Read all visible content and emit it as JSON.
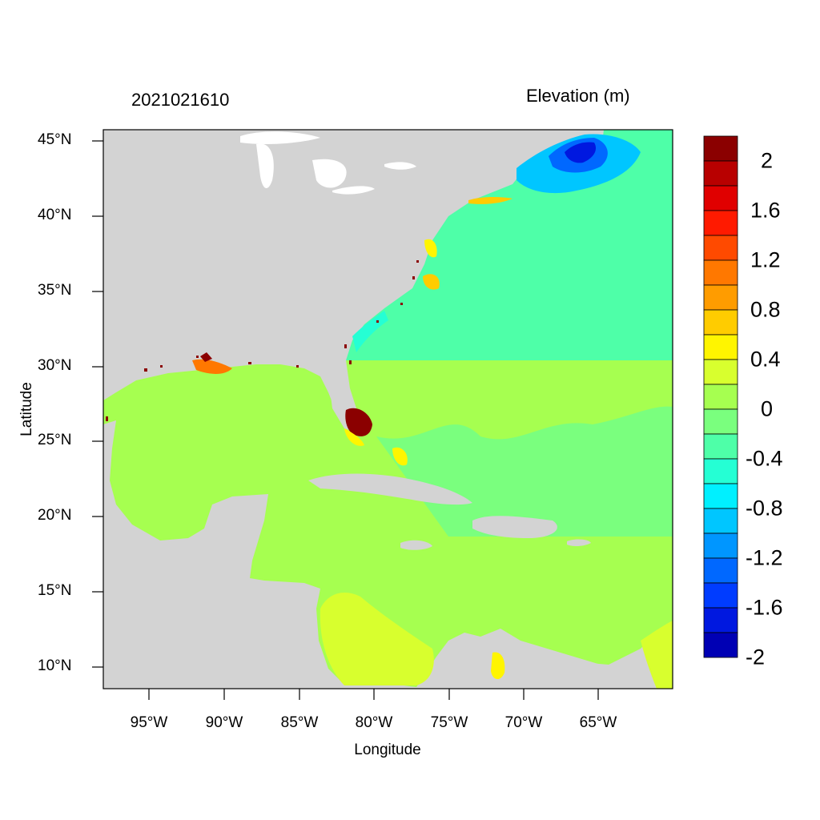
{
  "title_left": "2021021610",
  "title_right": "Elevation (m)",
  "xlabel": "Longitude",
  "ylabel": "Latitude",
  "x_ticks": [
    "95°W",
    "90°W",
    "85°W",
    "80°W",
    "75°W",
    "70°W",
    "65°W"
  ],
  "y_ticks": [
    "45°N",
    "40°N",
    "35°N",
    "30°N",
    "25°N",
    "20°N",
    "15°N",
    "10°N"
  ],
  "colorbar_labels": [
    "2",
    "1.6",
    "1.2",
    "0.8",
    "0.4",
    "0",
    "-0.4",
    "-0.8",
    "-1.2",
    "-1.6",
    "-2"
  ],
  "colorbar_colors": [
    "#8b0000",
    "#b80000",
    "#e00000",
    "#ff1a00",
    "#ff4a00",
    "#ff7800",
    "#ff9c00",
    "#ffcc00",
    "#fff500",
    "#d8ff2e",
    "#a6ff50",
    "#7aff7e",
    "#4effa8",
    "#25ffd4",
    "#00f0ff",
    "#00c6ff",
    "#0096ff",
    "#0068ff",
    "#003cff",
    "#0018e0",
    "#0000b4"
  ],
  "colors": {
    "land": "#d3d3d3",
    "ocean_gulf": "#a6ff50",
    "ocean_atlantic": "#4effa8",
    "ocean_transition": "#7aff7e"
  }
}
